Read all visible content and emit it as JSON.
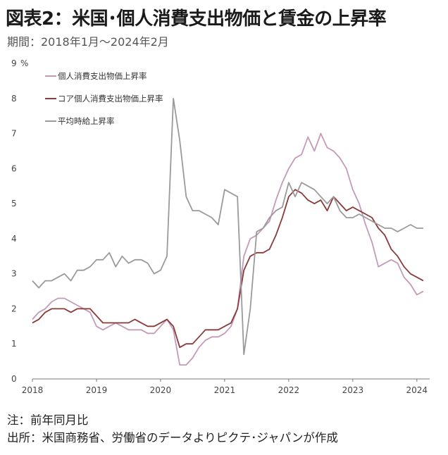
{
  "title": "図表2：米国･個人消費支出物価と賃金の上昇率",
  "subtitle": "期間：2018年1月～2024年2月",
  "notes": [
    "注：前年同月比",
    "出所：米国商務省、労働省のデータよりピクテ･ジャパンが作成"
  ],
  "chart_data": {
    "type": "line",
    "ylim": [
      0,
      9
    ],
    "xlim": [
      2018.0,
      2024.2
    ],
    "y_unit": "%",
    "yticks": [
      "0",
      "1",
      "2",
      "3",
      "4",
      "5",
      "6",
      "7",
      "8",
      "9"
    ],
    "xticks": [
      "2018",
      "2019",
      "2020",
      "2021",
      "2022",
      "2023",
      "2024"
    ],
    "grid": false,
    "legend": "top-left",
    "series": [
      {
        "name": "個人消費支出物価上昇率",
        "color": "#c49ab8",
        "points": [
          [
            2018.0,
            1.7
          ],
          [
            2018.1,
            1.9
          ],
          [
            2018.2,
            2.0
          ],
          [
            2018.3,
            2.2
          ],
          [
            2018.4,
            2.3
          ],
          [
            2018.5,
            2.3
          ],
          [
            2018.6,
            2.2
          ],
          [
            2018.7,
            2.1
          ],
          [
            2018.8,
            2.0
          ],
          [
            2018.9,
            1.9
          ],
          [
            2019.0,
            1.5
          ],
          [
            2019.1,
            1.4
          ],
          [
            2019.2,
            1.5
          ],
          [
            2019.3,
            1.6
          ],
          [
            2019.4,
            1.5
          ],
          [
            2019.5,
            1.4
          ],
          [
            2019.6,
            1.4
          ],
          [
            2019.7,
            1.4
          ],
          [
            2019.8,
            1.3
          ],
          [
            2019.9,
            1.3
          ],
          [
            2020.0,
            1.5
          ],
          [
            2020.1,
            1.7
          ],
          [
            2020.2,
            1.4
          ],
          [
            2020.3,
            0.4
          ],
          [
            2020.4,
            0.4
          ],
          [
            2020.5,
            0.6
          ],
          [
            2020.6,
            0.9
          ],
          [
            2020.7,
            1.1
          ],
          [
            2020.8,
            1.2
          ],
          [
            2020.9,
            1.2
          ],
          [
            2021.0,
            1.3
          ],
          [
            2021.1,
            1.5
          ],
          [
            2021.2,
            2.0
          ],
          [
            2021.3,
            3.5
          ],
          [
            2021.4,
            4.0
          ],
          [
            2021.5,
            4.1
          ],
          [
            2021.6,
            4.3
          ],
          [
            2021.7,
            4.5
          ],
          [
            2021.8,
            5.1
          ],
          [
            2021.9,
            5.6
          ],
          [
            2022.0,
            6.0
          ],
          [
            2022.1,
            6.3
          ],
          [
            2022.2,
            6.4
          ],
          [
            2022.3,
            6.9
          ],
          [
            2022.4,
            6.5
          ],
          [
            2022.5,
            7.0
          ],
          [
            2022.6,
            6.6
          ],
          [
            2022.7,
            6.5
          ],
          [
            2022.8,
            6.3
          ],
          [
            2022.9,
            6.0
          ],
          [
            2023.0,
            5.4
          ],
          [
            2023.1,
            5.0
          ],
          [
            2023.2,
            4.4
          ],
          [
            2023.3,
            3.9
          ],
          [
            2023.4,
            3.2
          ],
          [
            2023.5,
            3.3
          ],
          [
            2023.6,
            3.4
          ],
          [
            2023.7,
            3.3
          ],
          [
            2023.8,
            2.9
          ],
          [
            2023.9,
            2.7
          ],
          [
            2024.0,
            2.4
          ],
          [
            2024.1,
            2.5
          ]
        ]
      },
      {
        "name": "コア個人消費支出物価上昇率",
        "color": "#8b3a3a",
        "points": [
          [
            2018.0,
            1.6
          ],
          [
            2018.1,
            1.7
          ],
          [
            2018.2,
            1.9
          ],
          [
            2018.3,
            2.0
          ],
          [
            2018.4,
            2.0
          ],
          [
            2018.5,
            2.0
          ],
          [
            2018.6,
            1.9
          ],
          [
            2018.7,
            2.0
          ],
          [
            2018.8,
            2.0
          ],
          [
            2018.9,
            2.0
          ],
          [
            2019.0,
            1.8
          ],
          [
            2019.1,
            1.6
          ],
          [
            2019.2,
            1.6
          ],
          [
            2019.3,
            1.6
          ],
          [
            2019.4,
            1.6
          ],
          [
            2019.5,
            1.6
          ],
          [
            2019.6,
            1.7
          ],
          [
            2019.7,
            1.6
          ],
          [
            2019.8,
            1.5
          ],
          [
            2019.9,
            1.5
          ],
          [
            2020.0,
            1.6
          ],
          [
            2020.1,
            1.7
          ],
          [
            2020.2,
            1.5
          ],
          [
            2020.3,
            0.9
          ],
          [
            2020.4,
            1.0
          ],
          [
            2020.5,
            1.0
          ],
          [
            2020.6,
            1.2
          ],
          [
            2020.7,
            1.4
          ],
          [
            2020.8,
            1.4
          ],
          [
            2020.9,
            1.4
          ],
          [
            2021.0,
            1.5
          ],
          [
            2021.1,
            1.6
          ],
          [
            2021.2,
            2.0
          ],
          [
            2021.3,
            3.1
          ],
          [
            2021.4,
            3.5
          ],
          [
            2021.5,
            3.6
          ],
          [
            2021.6,
            3.6
          ],
          [
            2021.7,
            3.7
          ],
          [
            2021.8,
            4.1
          ],
          [
            2021.9,
            4.6
          ],
          [
            2022.0,
            5.2
          ],
          [
            2022.1,
            5.4
          ],
          [
            2022.2,
            5.3
          ],
          [
            2022.3,
            5.1
          ],
          [
            2022.4,
            5.0
          ],
          [
            2022.5,
            5.1
          ],
          [
            2022.6,
            4.8
          ],
          [
            2022.7,
            5.2
          ],
          [
            2022.8,
            5.0
          ],
          [
            2022.9,
            4.8
          ],
          [
            2023.0,
            4.9
          ],
          [
            2023.1,
            4.8
          ],
          [
            2023.2,
            4.7
          ],
          [
            2023.3,
            4.6
          ],
          [
            2023.4,
            4.3
          ],
          [
            2023.5,
            4.1
          ],
          [
            2023.6,
            3.7
          ],
          [
            2023.7,
            3.5
          ],
          [
            2023.8,
            3.2
          ],
          [
            2023.9,
            3.0
          ],
          [
            2024.0,
            2.9
          ],
          [
            2024.1,
            2.8
          ]
        ]
      },
      {
        "name": "平均時給上昇率",
        "color": "#9a9a9a",
        "points": [
          [
            2018.0,
            2.8
          ],
          [
            2018.1,
            2.6
          ],
          [
            2018.2,
            2.8
          ],
          [
            2018.3,
            2.8
          ],
          [
            2018.4,
            2.9
          ],
          [
            2018.5,
            3.0
          ],
          [
            2018.6,
            2.8
          ],
          [
            2018.7,
            3.1
          ],
          [
            2018.8,
            3.1
          ],
          [
            2018.9,
            3.2
          ],
          [
            2019.0,
            3.4
          ],
          [
            2019.1,
            3.4
          ],
          [
            2019.2,
            3.6
          ],
          [
            2019.3,
            3.2
          ],
          [
            2019.4,
            3.5
          ],
          [
            2019.5,
            3.3
          ],
          [
            2019.6,
            3.4
          ],
          [
            2019.7,
            3.4
          ],
          [
            2019.8,
            3.3
          ],
          [
            2019.9,
            3.0
          ],
          [
            2020.0,
            3.1
          ],
          [
            2020.1,
            3.5
          ],
          [
            2020.2,
            8.0
          ],
          [
            2020.3,
            6.8
          ],
          [
            2020.4,
            5.2
          ],
          [
            2020.5,
            4.8
          ],
          [
            2020.6,
            4.8
          ],
          [
            2020.7,
            4.7
          ],
          [
            2020.8,
            4.6
          ],
          [
            2020.9,
            4.4
          ],
          [
            2021.0,
            5.4
          ],
          [
            2021.1,
            5.3
          ],
          [
            2021.2,
            5.2
          ],
          [
            2021.3,
            0.7
          ],
          [
            2021.4,
            2.0
          ],
          [
            2021.5,
            4.2
          ],
          [
            2021.6,
            4.3
          ],
          [
            2021.7,
            4.6
          ],
          [
            2021.8,
            4.8
          ],
          [
            2021.9,
            4.9
          ],
          [
            2022.0,
            5.6
          ],
          [
            2022.1,
            5.2
          ],
          [
            2022.2,
            5.6
          ],
          [
            2022.3,
            5.5
          ],
          [
            2022.4,
            5.4
          ],
          [
            2022.5,
            5.2
          ],
          [
            2022.6,
            5.0
          ],
          [
            2022.7,
            5.2
          ],
          [
            2022.8,
            4.8
          ],
          [
            2022.9,
            4.6
          ],
          [
            2023.0,
            4.6
          ],
          [
            2023.1,
            4.7
          ],
          [
            2023.2,
            4.6
          ],
          [
            2023.3,
            4.5
          ],
          [
            2023.4,
            4.4
          ],
          [
            2023.5,
            4.3
          ],
          [
            2023.6,
            4.3
          ],
          [
            2023.7,
            4.2
          ],
          [
            2023.8,
            4.3
          ],
          [
            2023.9,
            4.4
          ],
          [
            2024.0,
            4.3
          ],
          [
            2024.1,
            4.3
          ]
        ]
      }
    ]
  }
}
